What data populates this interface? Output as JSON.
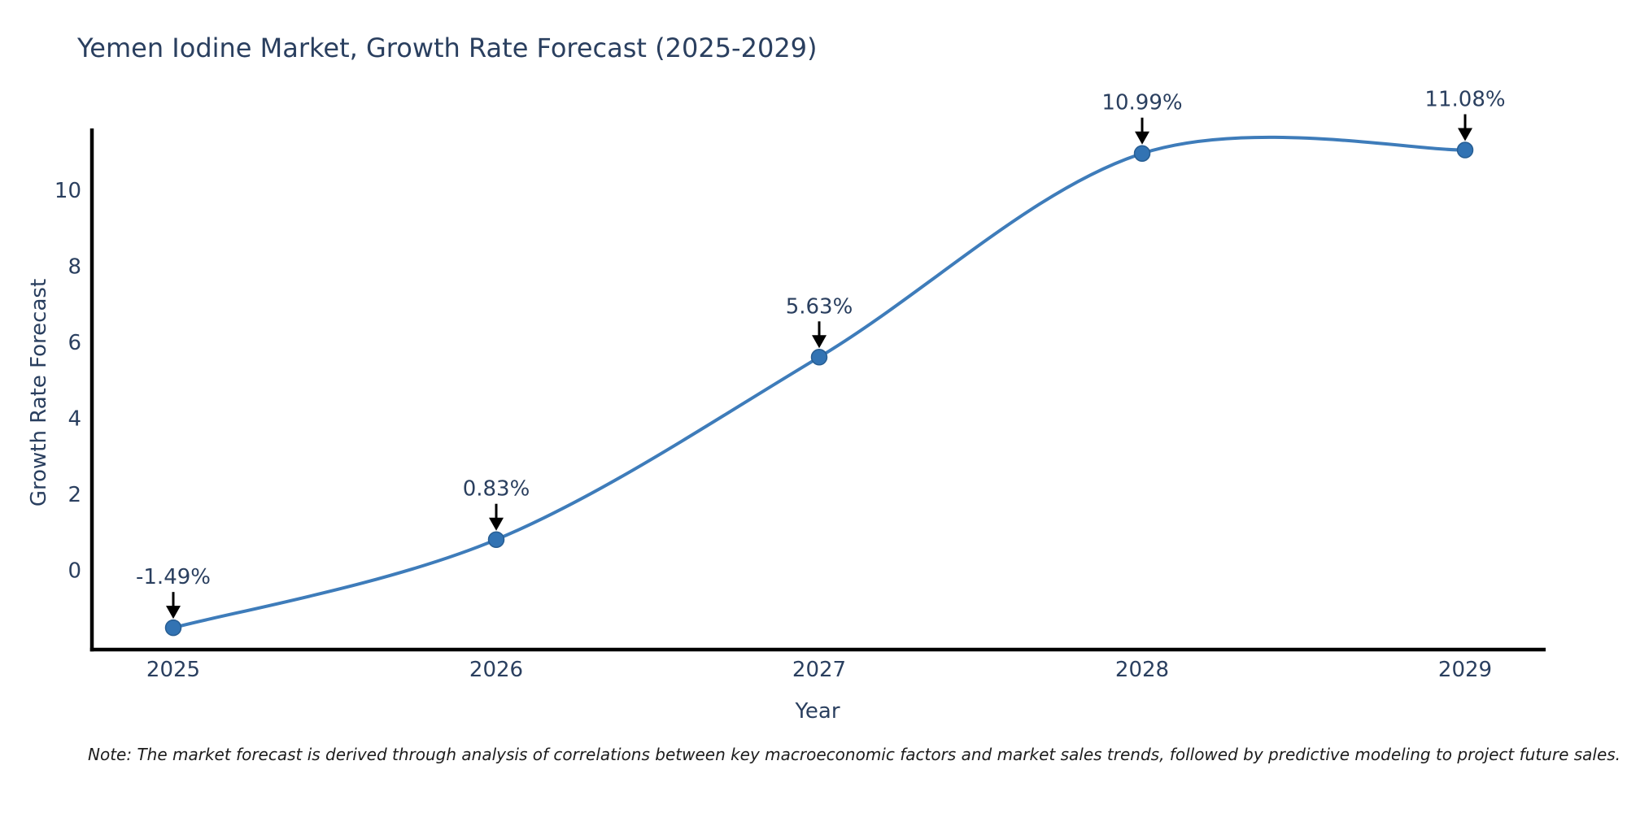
{
  "page": {
    "background": "#ffffff"
  },
  "chart_data": {
    "type": "line",
    "title": "Yemen Iodine Market, Growth Rate Forecast (2025-2029)",
    "xlabel": "Year",
    "ylabel": "Growth Rate Forecast",
    "x": [
      2025,
      2026,
      2027,
      2028,
      2029
    ],
    "series": [
      {
        "name": "Growth Rate Forecast",
        "values": [
          -1.49,
          0.83,
          5.63,
          10.99,
          11.08
        ]
      }
    ],
    "point_labels": [
      "-1.49%",
      "0.83%",
      "5.63%",
      "10.99%",
      "11.08%"
    ],
    "x_tick_labels": [
      "2025",
      "2026",
      "2027",
      "2028",
      "2029"
    ],
    "y_ticks": [
      0,
      2,
      4,
      6,
      8,
      10
    ],
    "ylim": [
      -2.1,
      11.6
    ],
    "grid": false,
    "legend_position": "none",
    "line_shape": "spline",
    "annotation_style": "arrow-down-to-point",
    "colors": {
      "line": "#3e7cba",
      "marker_fill": "#3273b3",
      "marker_edge": "#275d92",
      "axis_line": "#000000",
      "tick_text": "#2a3f5f",
      "annotation_text": "#2a3f5f",
      "title_text": "#2a3f5f",
      "note_text": "#1d1d1d",
      "arrow": "#000000"
    }
  },
  "note": {
    "text": "Note: The market forecast is derived through analysis of correlations between key macroeconomic factors and market sales trends, followed by predictive modeling to project future sales."
  }
}
